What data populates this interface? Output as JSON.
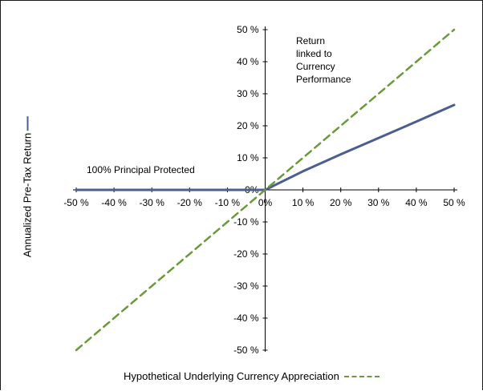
{
  "chart_data": {
    "type": "line",
    "x": [
      -50,
      -40,
      -30,
      -20,
      -10,
      0,
      10,
      20,
      30,
      40,
      50
    ],
    "series": [
      {
        "values": [
          0,
          0,
          0,
          0,
          0,
          0,
          5.8,
          11.1,
          16.2,
          21.3,
          26.5
        ],
        "color": "#4a5f8f",
        "style": "solid"
      },
      {
        "values": [
          -50,
          -40,
          -30,
          -20,
          -10,
          0,
          10,
          20,
          30,
          40,
          50
        ],
        "color": "#6a9a3a",
        "style": "dashed"
      }
    ],
    "xlim": [
      -50,
      50
    ],
    "ylim": [
      -50,
      50
    ],
    "x_ticks": [
      "-50 %",
      "-40 %",
      "-30 %",
      "-20 %",
      "-10 %",
      "0%",
      "10 %",
      "20 %",
      "30 %",
      "40 %",
      "50 %"
    ],
    "y_ticks": [
      "50 %",
      "40 %",
      "30 %",
      "20 %",
      "10 %",
      "0%",
      "-10 %",
      "-20 %",
      "-30 %",
      "-40 %",
      "-50 %"
    ],
    "ylabel": "Annualized Pre-Tax Return",
    "xlabel": "Hypothetical Underlying Currency Appreciation",
    "annotations": {
      "return_lines": [
        "Return",
        "linked to",
        "Currency",
        "Performance"
      ],
      "principal": "100% Principal Protected"
    },
    "grid": false,
    "axes_style": "crossing-at-origin"
  }
}
